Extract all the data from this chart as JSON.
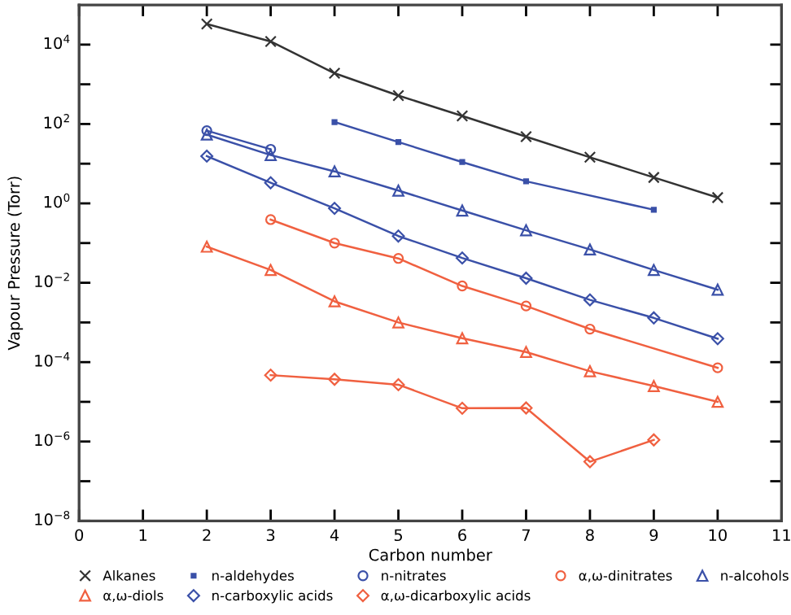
{
  "chart_data": {
    "type": "line",
    "xlabel": "Carbon number",
    "ylabel": "Vapour Pressure (Torr)",
    "log": "y",
    "xlim": [
      0,
      11
    ],
    "xticks": [
      0,
      1,
      2,
      3,
      4,
      5,
      6,
      7,
      8,
      9,
      10,
      11
    ],
    "ylim": [
      1e-08,
      100000.0
    ],
    "yticks": [
      {
        "value": 1e-08,
        "label": "10$^{−8}$"
      },
      {
        "value": 1e-07,
        "label": null
      },
      {
        "value": 1e-06,
        "label": "10$^{−6}$"
      },
      {
        "value": 1e-05,
        "label": null
      },
      {
        "value": 0.0001,
        "label": "10$^{−4}$"
      },
      {
        "value": 0.001,
        "label": null
      },
      {
        "value": 0.01,
        "label": "10$^{−2}$"
      },
      {
        "value": 0.1,
        "label": null
      },
      {
        "value": 1,
        "label": "10$^{0}$"
      },
      {
        "value": 10,
        "label": null
      },
      {
        "value": 100,
        "label": "10$^{2}$"
      },
      {
        "value": 1000,
        "label": null
      },
      {
        "value": 10000,
        "label": "10$^{4}$"
      }
    ],
    "grid": false,
    "legend": "bottom",
    "line_style": "solid",
    "series": [
      {
        "name": "Alkanes",
        "color": "#333333",
        "marker": "cross",
        "x": [
          2,
          3,
          4,
          5,
          6,
          7,
          8,
          9,
          10
        ],
        "values": [
          33000,
          12000,
          1900,
          520,
          160,
          48,
          14.5,
          4.5,
          1.4
        ]
      },
      {
        "name": "n-aldehydes",
        "color": "#3a50a8",
        "marker": "square",
        "x": [
          4,
          5,
          6,
          7,
          9
        ],
        "values": [
          112,
          35,
          11,
          3.6,
          0.69
        ]
      },
      {
        "name": "n-nitrates",
        "color": "#3a50a8",
        "marker": "circle",
        "x": [
          2,
          3
        ],
        "values": [
          68,
          23
        ]
      },
      {
        "name": "α,ω-dinitrates",
        "color": "#f06040",
        "marker": "circle",
        "x": [
          3,
          4,
          5,
          6,
          7,
          8,
          10
        ],
        "values": [
          0.39,
          0.1,
          0.041,
          0.0083,
          0.0026,
          0.00068,
          7.2e-05
        ]
      },
      {
        "name": "n-alcohols",
        "color": "#3a50a8",
        "marker": "triangle",
        "x": [
          2,
          3,
          4,
          5,
          6,
          7,
          8,
          9,
          10
        ],
        "values": [
          54,
          16.5,
          6.4,
          2.1,
          0.66,
          0.21,
          0.069,
          0.021,
          0.0067
        ]
      },
      {
        "name": "α,ω-diols",
        "color": "#f06040",
        "marker": "triangle",
        "x": [
          2,
          3,
          4,
          5,
          6,
          7,
          8,
          9,
          10
        ],
        "values": [
          0.081,
          0.021,
          0.0034,
          0.001,
          0.0004,
          0.00018,
          5.9e-05,
          2.5e-05,
          1e-05
        ]
      },
      {
        "name": "n-carboxylic acids",
        "color": "#3a50a8",
        "marker": "diamond",
        "x": [
          2,
          3,
          4,
          5,
          6,
          7,
          8,
          9,
          10
        ],
        "values": [
          15.5,
          3.3,
          0.75,
          0.15,
          0.042,
          0.013,
          0.0037,
          0.0013,
          0.00039
        ]
      },
      {
        "name": "α,ω-dicarboxylic acids",
        "color": "#f06040",
        "marker": "diamond",
        "x": [
          3,
          4,
          5,
          6,
          7,
          8,
          9
        ],
        "values": [
          4.7e-05,
          3.7e-05,
          2.7e-05,
          6.9e-06,
          7e-06,
          3.1e-07,
          1.1e-06
        ]
      }
    ]
  }
}
